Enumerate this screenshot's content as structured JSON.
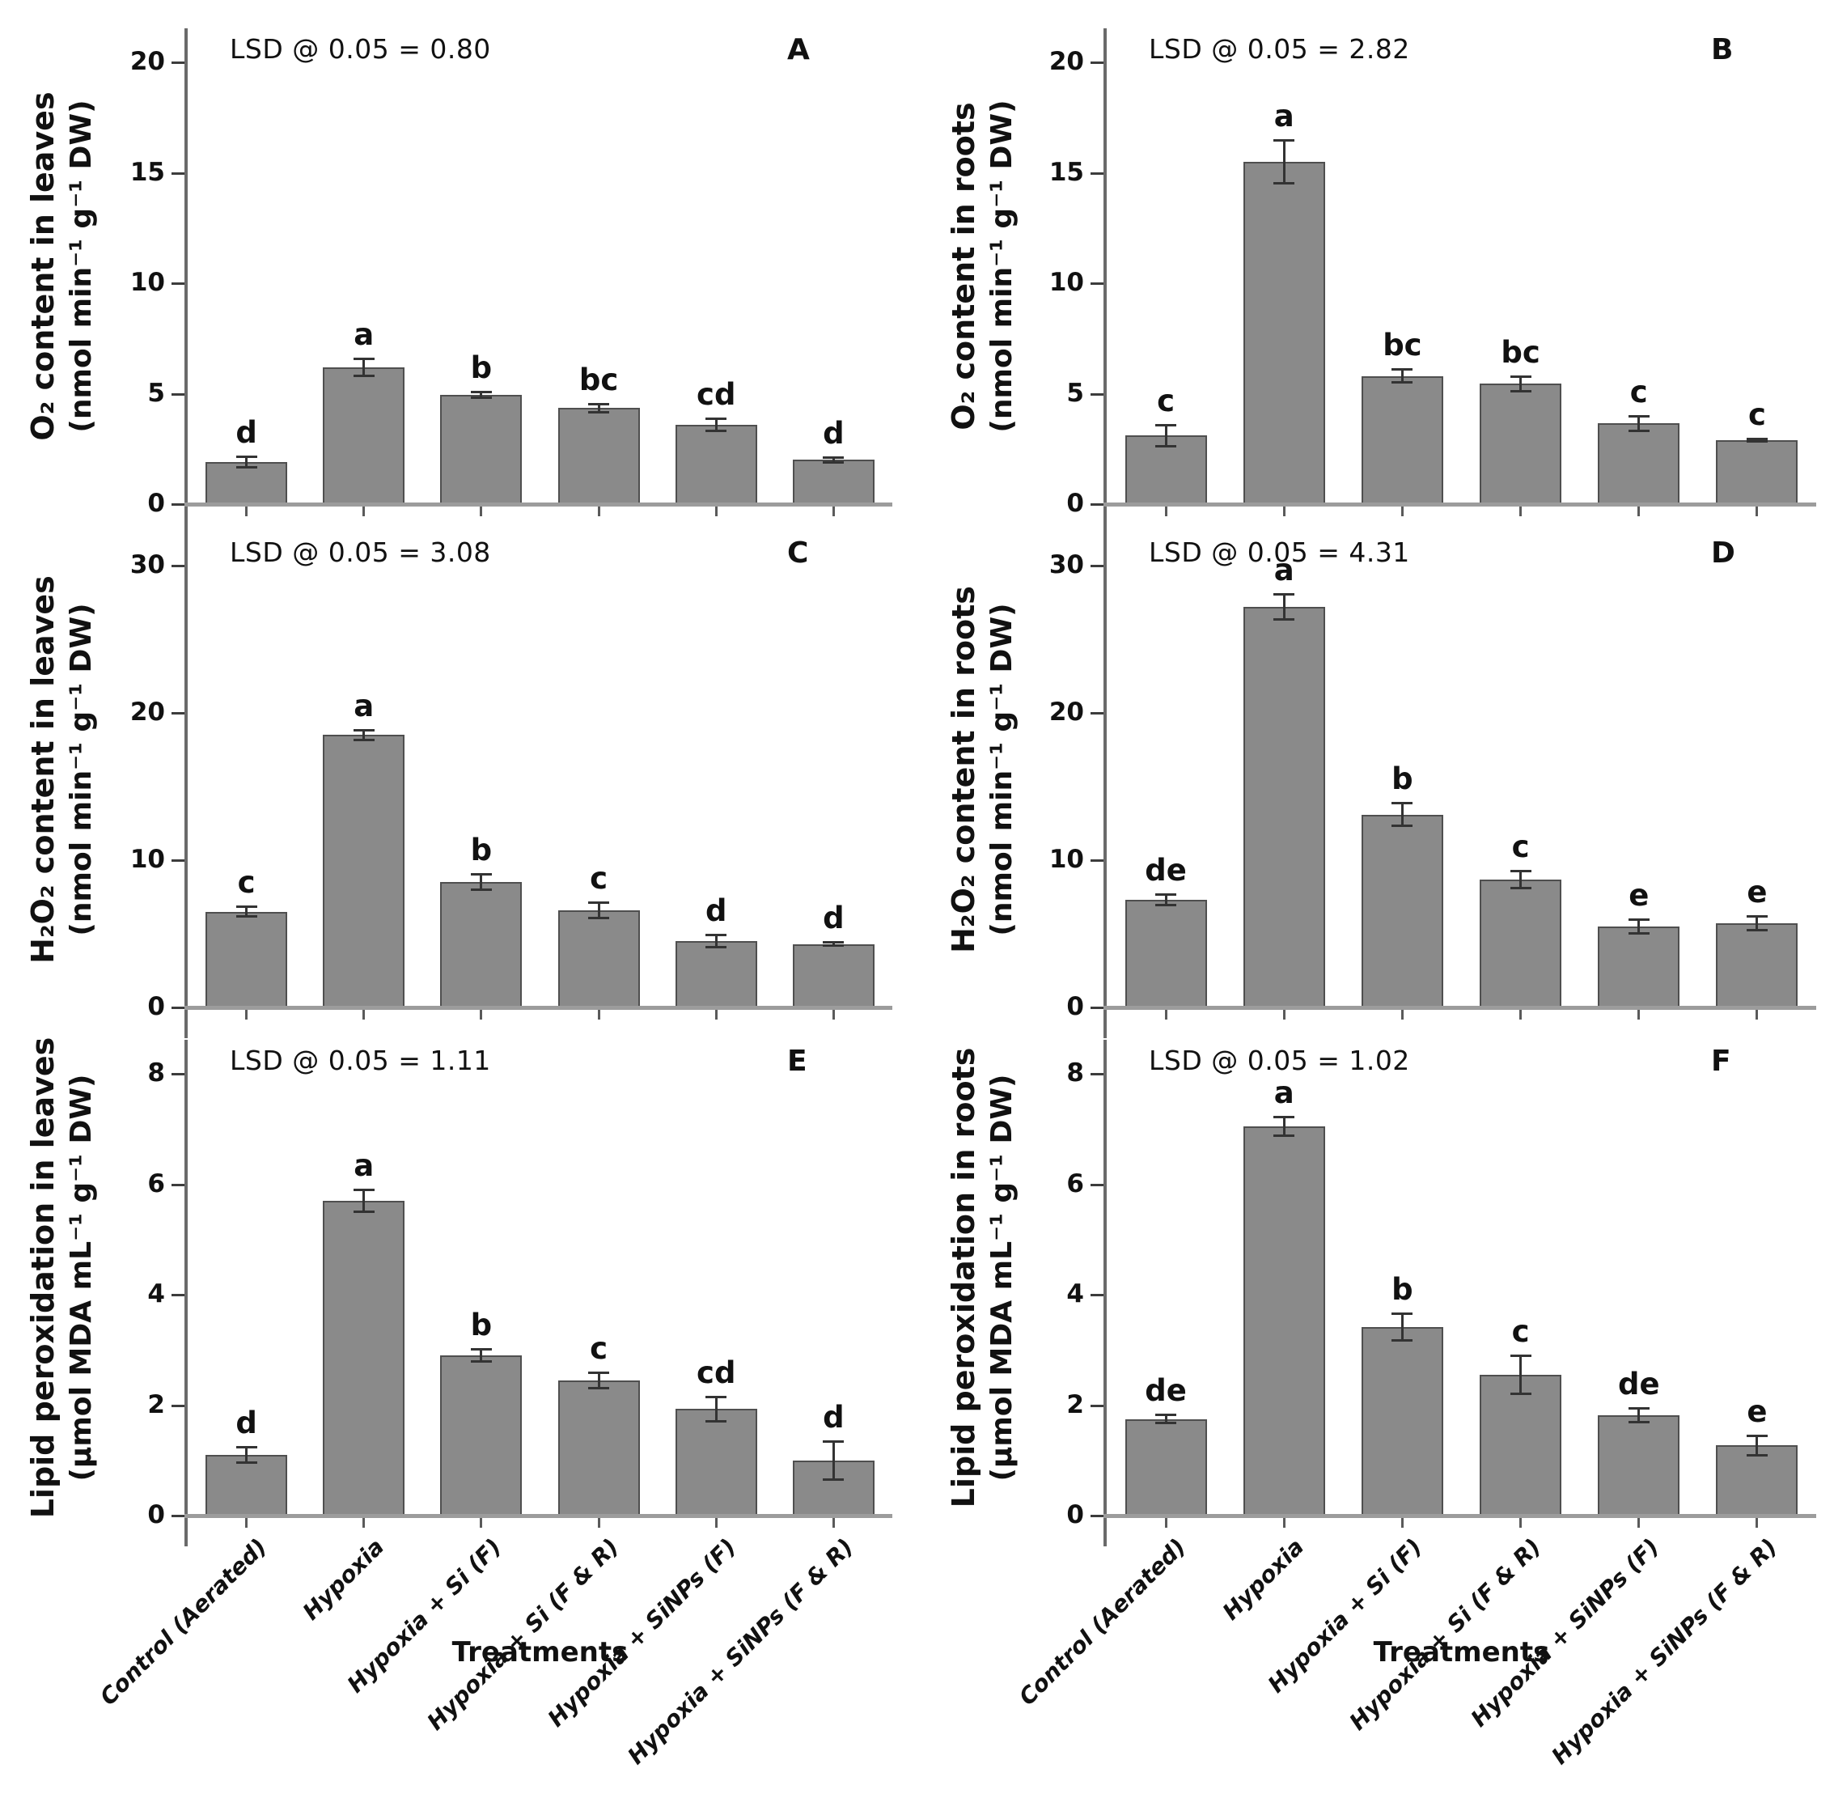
{
  "figure": {
    "x_axis_title": "Treatments",
    "categories": [
      "Control (Aerated)",
      "Hypoxia",
      "Hypoxia + Si (F)",
      "Hypoxia + Si (F & R)",
      "Hypoxia + SiNPs (F)",
      "Hypoxia + SiNPs (F & R)"
    ],
    "colors": {
      "bar_fill": "#8a8a8a",
      "bar_border": "#4f4f4f",
      "axis_spine": "#6a6a6a",
      "axis_baseline": "#9c9c9c",
      "tick": "#3c3c3c",
      "error_bar": "#333333",
      "text": "#111111",
      "background": "#ffffff"
    }
  },
  "chart_data": [
    {
      "type": "bar",
      "panel_label": "A",
      "annotation": "LSD @ 0.05 = 0.80",
      "ylabel": "O₂ content in leaves",
      "ylabel_units": "(nmol min⁻¹ g⁻¹ DW)",
      "xlabel": "Treatments",
      "categories": [
        "Control (Aerated)",
        "Hypoxia",
        "Hypoxia + Si (F)",
        "Hypoxia + Si (F & R)",
        "Hypoxia + SiNPs (F)",
        "Hypoxia + SiNPs (F & R)"
      ],
      "values": [
        1.9,
        6.2,
        4.95,
        4.35,
        3.6,
        2.0
      ],
      "errors": [
        0.25,
        0.4,
        0.15,
        0.2,
        0.3,
        0.12
      ],
      "sig_letters": [
        "d",
        "a",
        "b",
        "bc",
        "cd",
        "d"
      ],
      "yticks": [
        0,
        5,
        10,
        15,
        20
      ],
      "ylim": [
        0,
        21.5
      ],
      "grid": false
    },
    {
      "type": "bar",
      "panel_label": "B",
      "annotation": "LSD @ 0.05 = 2.82",
      "ylabel": "O₂ content in roots",
      "ylabel_units": "(nmol min⁻¹ g⁻¹ DW)",
      "xlabel": "Treatments",
      "categories": [
        "Control (Aerated)",
        "Hypoxia",
        "Hypoxia + Si (F)",
        "Hypoxia + Si (F & R)",
        "Hypoxia + SiNPs (F)",
        "Hypoxia + SiNPs (F & R)"
      ],
      "values": [
        3.1,
        15.5,
        5.8,
        5.45,
        3.65,
        2.9
      ],
      "errors": [
        0.5,
        1.0,
        0.3,
        0.35,
        0.35,
        0.08
      ],
      "sig_letters": [
        "c",
        "a",
        "bc",
        "bc",
        "c",
        "c"
      ],
      "yticks": [
        0,
        5,
        10,
        15,
        20
      ],
      "ylim": [
        0,
        21.5
      ],
      "grid": false
    },
    {
      "type": "bar",
      "panel_label": "C",
      "annotation": "LSD @ 0.05 = 3.08",
      "ylabel": "H₂O₂ content in leaves",
      "ylabel_units": "(nmol min⁻¹ g⁻¹ DW)",
      "xlabel": "Treatments",
      "categories": [
        "Control (Aerated)",
        "Hypoxia",
        "Hypoxia + Si (F)",
        "Hypoxia + Si (F & R)",
        "Hypoxia + SiNPs (F)",
        "Hypoxia + SiNPs (F & R)"
      ],
      "values": [
        6.5,
        18.5,
        8.5,
        6.6,
        4.5,
        4.3
      ],
      "errors": [
        0.35,
        0.35,
        0.55,
        0.55,
        0.45,
        0.15
      ],
      "sig_letters": [
        "c",
        "a",
        "b",
        "c",
        "d",
        "d"
      ],
      "yticks": [
        0,
        10,
        20,
        30
      ],
      "ylim": [
        0,
        32.3
      ],
      "grid": false
    },
    {
      "type": "bar",
      "panel_label": "D",
      "annotation": "LSD @ 0.05 = 4.31",
      "ylabel": "H₂O₂ content in roots",
      "ylabel_units": "(nmol min⁻¹ g⁻¹ DW)",
      "xlabel": "Treatments",
      "categories": [
        "Control (Aerated)",
        "Hypoxia",
        "Hypoxia + Si (F)",
        "Hypoxia + Si (F & R)",
        "Hypoxia + SiNPs (F)",
        "Hypoxia + SiNPs (F & R)"
      ],
      "values": [
        7.3,
        27.2,
        13.1,
        8.7,
        5.5,
        5.7
      ],
      "errors": [
        0.4,
        0.9,
        0.8,
        0.6,
        0.5,
        0.5
      ],
      "sig_letters": [
        "de",
        "a",
        "b",
        "c",
        "e",
        "e"
      ],
      "yticks": [
        0,
        10,
        20,
        30
      ],
      "ylim": [
        0,
        32.3
      ],
      "grid": false
    },
    {
      "type": "bar",
      "panel_label": "E",
      "annotation": "LSD @ 0.05 = 1.11",
      "ylabel": "Lipid peroxidation in leaves",
      "ylabel_units": "(μmol MDA mL⁻¹ g⁻¹ DW)",
      "xlabel": "Treatments",
      "categories": [
        "Control (Aerated)",
        "Hypoxia",
        "Hypoxia + Si (F)",
        "Hypoxia + Si (F & R)",
        "Hypoxia + SiNPs (F)",
        "Hypoxia + SiNPs (F & R)"
      ],
      "values": [
        1.1,
        5.7,
        2.9,
        2.45,
        1.93,
        1.0
      ],
      "errors": [
        0.15,
        0.2,
        0.12,
        0.15,
        0.23,
        0.35
      ],
      "sig_letters": [
        "d",
        "a",
        "b",
        "c",
        "cd",
        "d"
      ],
      "yticks": [
        0,
        2,
        4,
        6,
        8
      ],
      "ylim": [
        0,
        8.6
      ],
      "grid": false
    },
    {
      "type": "bar",
      "panel_label": "F",
      "annotation": "LSD @ 0.05 = 1.02",
      "ylabel": "Lipid peroxidation in roots",
      "ylabel_units": "(μmol MDA mL⁻¹ g⁻¹ DW)",
      "xlabel": "Treatments",
      "categories": [
        "Control (Aerated)",
        "Hypoxia",
        "Hypoxia + Si (F)",
        "Hypoxia + Si (F & R)",
        "Hypoxia + SiNPs (F)",
        "Hypoxia + SiNPs (F & R)"
      ],
      "values": [
        1.75,
        7.05,
        3.42,
        2.55,
        1.82,
        1.27
      ],
      "errors": [
        0.08,
        0.18,
        0.25,
        0.35,
        0.13,
        0.18
      ],
      "sig_letters": [
        "de",
        "a",
        "b",
        "c",
        "de",
        "e"
      ],
      "yticks": [
        0,
        2,
        4,
        6,
        8
      ],
      "ylim": [
        0,
        8.6
      ],
      "grid": false
    }
  ]
}
